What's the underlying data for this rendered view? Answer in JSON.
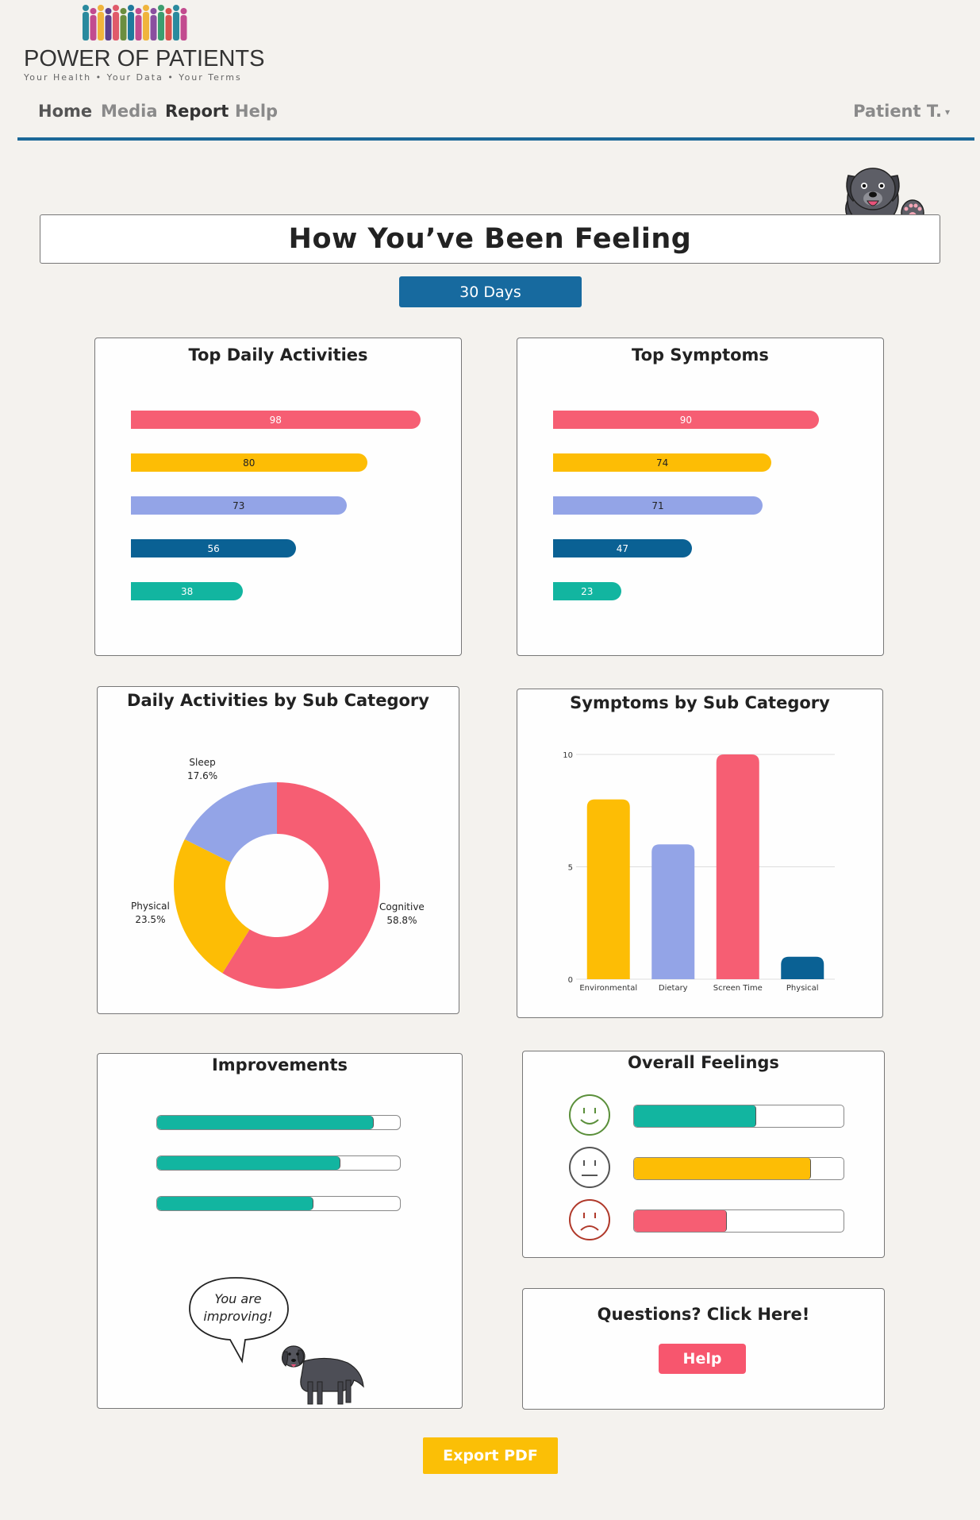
{
  "logo": {
    "title": "POWER OF PATIENTS",
    "tagline": "Your Health • Your Data • Your Terms",
    "people_colors": [
      "#2a8a9e",
      "#c24b8f",
      "#f0b43c",
      "#5b3f8f",
      "#e05a6a",
      "#6b8e3f",
      "#1f7a9c",
      "#c24b8f",
      "#f0b43c",
      "#8a4f9f",
      "#3c9e6f",
      "#d9534f",
      "#2a8a9e",
      "#c24b8f"
    ]
  },
  "nav": {
    "items": [
      {
        "label": "Home",
        "active": false
      },
      {
        "label": "Media",
        "active": false
      },
      {
        "label": "Report",
        "active": true
      },
      {
        "label": "Help",
        "active": false
      }
    ],
    "user": "Patient T."
  },
  "page_title": "How You’ve Been Feeling",
  "range_button": "30 Days",
  "colors": {
    "pink": "#f65e73",
    "yellow": "#fdbd05",
    "lavender": "#93a4e7",
    "blue": "#0a6194",
    "teal": "#12b5a0",
    "nav_rule": "#1c6898"
  },
  "top_daily_activities": {
    "title": "Top Daily Activities",
    "bars": [
      {
        "value": 98,
        "label": "98",
        "color": "#f65e73",
        "text_color": "#fff"
      },
      {
        "value": 80,
        "label": "80",
        "color": "#fdbd05",
        "text_color": "#222"
      },
      {
        "value": 73,
        "label": "73",
        "color": "#93a4e7",
        "text_color": "#222"
      },
      {
        "value": 56,
        "label": "56",
        "color": "#0a6194",
        "text_color": "#fff"
      },
      {
        "value": 38,
        "label": "38",
        "color": "#12b5a0",
        "text_color": "#fff"
      }
    ]
  },
  "top_symptoms": {
    "title": "Top Symptoms",
    "bars": [
      {
        "value": 90,
        "label": "90",
        "color": "#f65e73",
        "text_color": "#fff"
      },
      {
        "value": 74,
        "label": "74",
        "color": "#fdbd05",
        "text_color": "#222"
      },
      {
        "value": 71,
        "label": "71",
        "color": "#93a4e7",
        "text_color": "#222"
      },
      {
        "value": 47,
        "label": "47",
        "color": "#0a6194",
        "text_color": "#fff"
      },
      {
        "value": 23,
        "label": "23",
        "color": "#12b5a0",
        "text_color": "#fff"
      }
    ]
  },
  "daily_by_sub": {
    "title": "Daily Activities by Sub Category",
    "slices": [
      {
        "name": "Cognitive",
        "percent_label": "58.8%",
        "value": 58.8,
        "color": "#f65e73"
      },
      {
        "name": "Physical",
        "percent_label": "23.5%",
        "value": 23.5,
        "color": "#fdbd05"
      },
      {
        "name": "Sleep",
        "percent_label": "17.6%",
        "value": 17.6,
        "color": "#93a4e7"
      }
    ]
  },
  "chart_data": [
    {
      "type": "bar",
      "orientation": "horizontal",
      "title": "Top Daily Activities",
      "values": [
        98,
        80,
        73,
        56,
        38
      ]
    },
    {
      "type": "bar",
      "orientation": "horizontal",
      "title": "Top Symptoms",
      "values": [
        90,
        74,
        71,
        47,
        23
      ]
    },
    {
      "type": "pie",
      "title": "Daily Activities by Sub Category",
      "categories": [
        "Cognitive",
        "Physical",
        "Sleep"
      ],
      "values": [
        58.8,
        23.5,
        17.6
      ]
    },
    {
      "type": "bar",
      "title": "Symptoms by Sub Category",
      "categories": [
        "Environmental",
        "Dietary",
        "Screen Time",
        "Physical"
      ],
      "values": [
        8,
        6,
        10,
        1
      ],
      "colors": [
        "#fdbd05",
        "#93a4e7",
        "#f65e73",
        "#0a6194"
      ],
      "ylim": [
        0,
        10
      ],
      "yticks": [
        "0",
        "5",
        "10"
      ],
      "grid": true
    }
  ],
  "symptoms_by_sub": {
    "title": "Symptoms by Sub Category"
  },
  "improvements": {
    "title": "Improvements",
    "progress": [
      0.89,
      0.75,
      0.64
    ],
    "speech": "You are improving!"
  },
  "overall_feelings": {
    "title": "Overall Feelings",
    "rows": [
      {
        "mood": "happy-face-icon",
        "fill": 0.58,
        "color": "#12b5a0",
        "face_color": "#5a8f3a"
      },
      {
        "mood": "neutral-face-icon",
        "fill": 0.84,
        "color": "#fdbd05",
        "face_color": "#555555"
      },
      {
        "mood": "sad-face-icon",
        "fill": 0.44,
        "color": "#f65e73",
        "face_color": "#b0392a"
      }
    ]
  },
  "questions": {
    "title": "Questions?  Click Here!",
    "button": "Help"
  },
  "export_button": "Export PDF"
}
